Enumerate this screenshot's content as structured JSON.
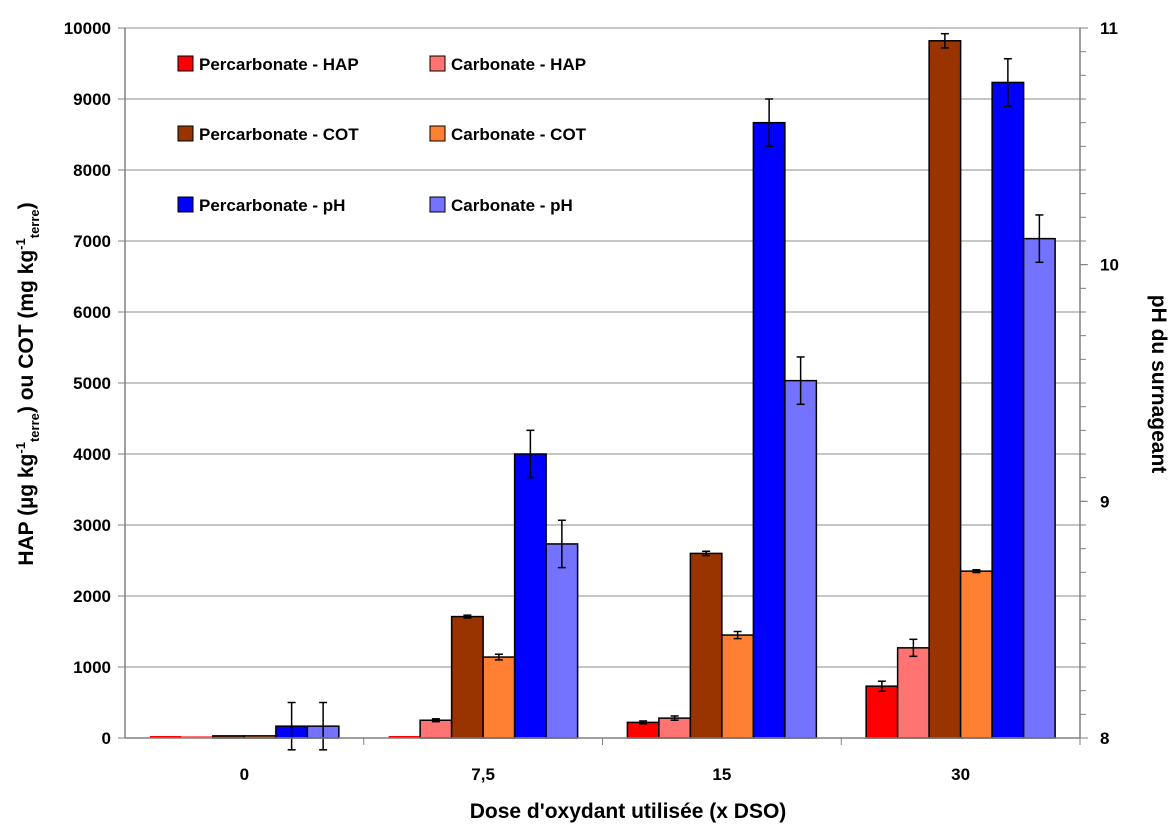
{
  "chart_data": {
    "type": "bar",
    "categories": [
      "0",
      "7,5",
      "15",
      "30"
    ],
    "xlabel": "Dose d'oxydant utilisée (x DSO)",
    "ylabel_left": {
      "main": "HAP (µg kg",
      "sup1": "-1",
      "sub1": "terre",
      "mid": ") ou COT (mg kg",
      "sup2": "-1",
      "sub2": "terre",
      "end": ")"
    },
    "ylabel_right": "pH du surnageant",
    "ylim_left": [
      0,
      10000
    ],
    "yticks_left": [
      0,
      1000,
      2000,
      3000,
      4000,
      5000,
      6000,
      7000,
      8000,
      9000,
      10000
    ],
    "ylim_right": [
      8,
      11
    ],
    "yticks_right": [
      8,
      9,
      10,
      11
    ],
    "grid": true,
    "legend_position": "top-left",
    "series": [
      {
        "name": "Percarbonate - HAP",
        "axis": "left",
        "color": "#ff0000",
        "values": [
          0,
          0,
          220,
          730
        ],
        "errors": [
          0,
          0,
          20,
          70
        ]
      },
      {
        "name": "Carbonate - HAP",
        "axis": "left",
        "color": "#ff7373",
        "values": [
          0,
          250,
          280,
          1270
        ],
        "errors": [
          0,
          20,
          30,
          120
        ]
      },
      {
        "name": "Percarbonate - COT",
        "axis": "left",
        "color": "#993300",
        "values": [
          30,
          1710,
          2600,
          9820
        ],
        "errors": [
          0,
          20,
          30,
          100
        ]
      },
      {
        "name": "Carbonate - COT",
        "axis": "left",
        "color": "#ff8033",
        "values": [
          30,
          1140,
          1450,
          2350
        ],
        "errors": [
          0,
          40,
          50,
          20
        ]
      },
      {
        "name": "Percarbonate - pH",
        "axis": "right",
        "color": "#0000ff",
        "values": [
          8.05,
          9.2,
          10.6,
          10.77
        ],
        "errors": [
          0.1,
          0.1,
          0.1,
          0.1
        ]
      },
      {
        "name": "Carbonate - pH",
        "axis": "right",
        "color": "#7373ff",
        "values": [
          8.05,
          8.82,
          9.51,
          10.11
        ],
        "errors": [
          0.1,
          0.1,
          0.1,
          0.1
        ]
      }
    ]
  }
}
